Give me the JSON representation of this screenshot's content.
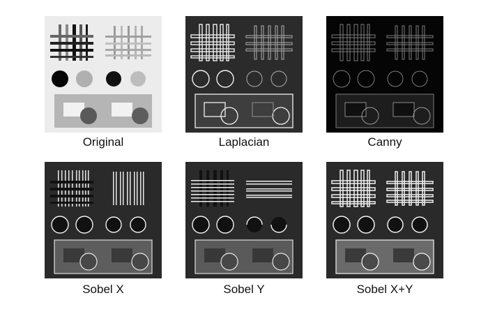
{
  "panels": [
    {
      "caption": "Original",
      "filter": "original"
    },
    {
      "caption": "Laplacian",
      "filter": "laplacian"
    },
    {
      "caption": "Canny",
      "filter": "canny"
    },
    {
      "caption": "Sobel X",
      "filter": "sobel-x"
    },
    {
      "caption": "Sobel Y",
      "filter": "sobel-y"
    },
    {
      "caption": "Sobel X+Y",
      "filter": "sobel-xy"
    }
  ],
  "colors": {
    "page_background": "#ffffff",
    "original_background": "#eeeeee",
    "edge_background": "#2a2a2a",
    "canny_background": "#050505",
    "edge_line": "#f2f2f2",
    "caption_text": "#111111"
  }
}
